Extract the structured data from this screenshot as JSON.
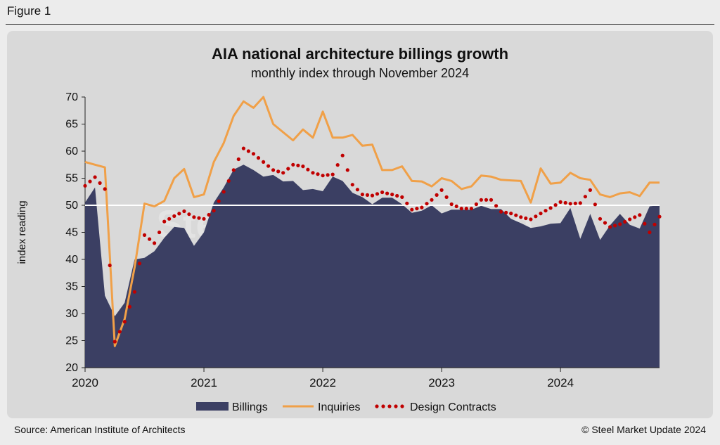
{
  "figure_label": "Figure 1",
  "source": "Source: American Institute of Architects",
  "copyright": "© Steel Market Update 2024",
  "watermark": "Steel Market Update",
  "chart_data": {
    "type": "area",
    "title": "AIA national architecture billings growth",
    "subtitle": "monthly index through November 2024",
    "ylabel": "index reading",
    "xlabel": "",
    "ylim": [
      20,
      70
    ],
    "yticks": [
      20,
      25,
      30,
      35,
      40,
      45,
      50,
      55,
      60,
      65,
      70
    ],
    "xticks": [
      "2020",
      "2021",
      "2022",
      "2023",
      "2024"
    ],
    "reference_line": 50,
    "legend_position": "bottom",
    "x": [
      "2020-01",
      "2020-02",
      "2020-03",
      "2020-04",
      "2020-05",
      "2020-06",
      "2020-07",
      "2020-08",
      "2020-09",
      "2020-10",
      "2020-11",
      "2020-12",
      "2021-01",
      "2021-02",
      "2021-03",
      "2021-04",
      "2021-05",
      "2021-06",
      "2021-07",
      "2021-08",
      "2021-09",
      "2021-10",
      "2021-11",
      "2021-12",
      "2022-01",
      "2022-02",
      "2022-03",
      "2022-04",
      "2022-05",
      "2022-06",
      "2022-07",
      "2022-08",
      "2022-09",
      "2022-10",
      "2022-11",
      "2022-12",
      "2023-01",
      "2023-02",
      "2023-03",
      "2023-04",
      "2023-05",
      "2023-06",
      "2023-07",
      "2023-08",
      "2023-09",
      "2023-10",
      "2023-11",
      "2023-12",
      "2024-01",
      "2024-02",
      "2024-03",
      "2024-04",
      "2024-05",
      "2024-06",
      "2024-07",
      "2024-08",
      "2024-09",
      "2024-10",
      "2024-11"
    ],
    "series": [
      {
        "name": "Billings",
        "style": "area",
        "color": "#3b3f63",
        "values": [
          50.5,
          53.3,
          33.3,
          29.5,
          32.0,
          40.0,
          40.3,
          41.5,
          44.0,
          46.0,
          45.8,
          42.5,
          45.0,
          50.5,
          53.3,
          56.6,
          57.5,
          56.5,
          55.3,
          55.6,
          54.4,
          54.5,
          52.8,
          53.0,
          52.6,
          55.3,
          54.5,
          52.3,
          51.5,
          50.2,
          51.4,
          51.4,
          50.2,
          48.6,
          49.0,
          50.0,
          48.5,
          49.2,
          49.2,
          49.2,
          49.9,
          49.3,
          49.3,
          47.5,
          46.7,
          45.8,
          46.1,
          46.6,
          46.7,
          49.5,
          43.8,
          48.4,
          43.6,
          46.3,
          48.4,
          46.4,
          45.7,
          49.8,
          50.0
        ]
      },
      {
        "name": "Inquiries",
        "style": "line",
        "color": "#f0a048",
        "values": [
          58.0,
          57.5,
          57.0,
          24.0,
          29.0,
          38.5,
          50.3,
          49.8,
          50.8,
          55.0,
          56.7,
          51.5,
          52.0,
          58.0,
          61.5,
          66.5,
          69.2,
          68.0,
          70.0,
          65.0,
          63.5,
          62.0,
          64.0,
          62.5,
          67.3,
          62.5,
          62.5,
          63.0,
          61.0,
          61.2,
          56.5,
          56.5,
          57.2,
          54.5,
          54.4,
          53.5,
          55.0,
          54.5,
          53.0,
          53.5,
          55.5,
          55.3,
          54.7,
          54.6,
          54.5,
          50.5,
          56.8,
          54.0,
          54.2,
          56.0,
          55.0,
          54.7,
          52.0,
          51.5,
          52.2,
          52.4,
          51.7,
          54.2,
          54.2
        ]
      },
      {
        "name": "Design Contracts",
        "style": "dots",
        "color": "#c00000",
        "values": [
          53.6,
          55.2,
          53.0,
          24.8,
          28.5,
          34.0,
          44.5,
          43.0,
          47.0,
          48.0,
          48.9,
          47.8,
          47.5,
          49.0,
          52.5,
          56.5,
          60.5,
          59.5,
          58.0,
          56.5,
          56.0,
          57.5,
          57.2,
          56.0,
          55.5,
          55.7,
          59.2,
          53.8,
          52.0,
          51.8,
          52.4,
          52.0,
          51.5,
          49.2,
          49.6,
          51.0,
          52.8,
          50.2,
          49.4,
          49.4,
          51.0,
          51.0,
          48.8,
          48.5,
          47.8,
          47.4,
          48.5,
          49.5,
          50.6,
          50.3,
          50.4,
          52.8,
          47.5,
          46.0,
          46.5,
          47.4,
          48.2,
          45.0,
          47.9
        ]
      }
    ]
  }
}
